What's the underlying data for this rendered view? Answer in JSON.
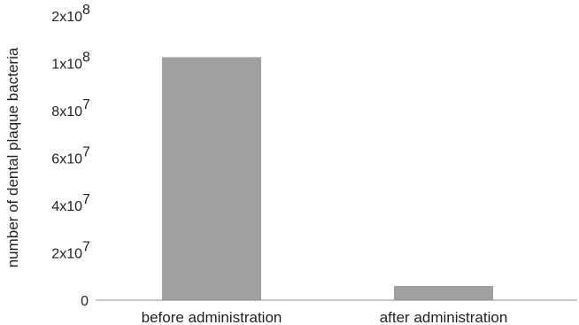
{
  "chart_data": {
    "type": "bar",
    "categories": [
      "before administration",
      "after administration"
    ],
    "values": [
      113000000,
      6000000
    ],
    "title": "",
    "xlabel": "",
    "ylabel": "number of dental plaque bacteria",
    "ylim": [
      0,
      200000000
    ],
    "yticks": [
      {
        "value": 0,
        "mantissa": "0",
        "exponent": ""
      },
      {
        "value": 20000000,
        "mantissa": "2x10",
        "exponent": "7"
      },
      {
        "value": 40000000,
        "mantissa": "4x10",
        "exponent": "7"
      },
      {
        "value": 60000000,
        "mantissa": "6x10",
        "exponent": "7"
      },
      {
        "value": 80000000,
        "mantissa": "8x10",
        "exponent": "7"
      },
      {
        "value": 100000000,
        "mantissa": "1x10",
        "exponent": "8"
      },
      {
        "value": 200000000,
        "mantissa": "2x10",
        "exponent": "8"
      }
    ],
    "grid": false,
    "bar_color": "#a0a0a0",
    "axis_color": "#8c8c8c"
  }
}
